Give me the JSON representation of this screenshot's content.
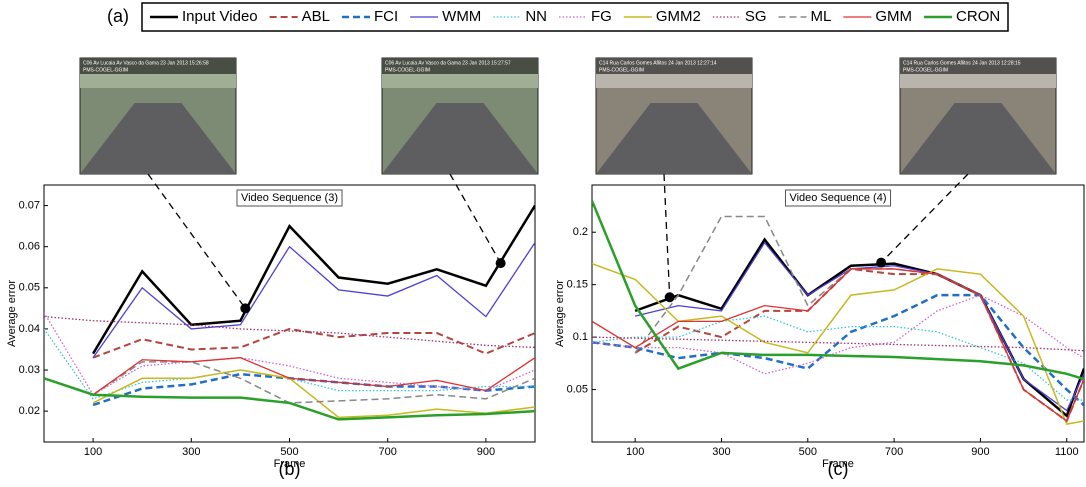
{
  "panel_label": "(a)",
  "chart_data": [
    {
      "type": "line",
      "label": "(b)",
      "annotation": "Video Sequence (3)",
      "xlabel": "Frame",
      "ylabel": "Average error",
      "x": [
        0,
        100,
        200,
        300,
        400,
        500,
        600,
        700,
        800,
        900,
        1000
      ],
      "xlim": [
        0,
        1000
      ],
      "xticks": [
        100,
        300,
        500,
        700,
        900
      ],
      "ylim": [
        0.0125,
        0.075
      ],
      "yticks": [
        0.02,
        0.03,
        0.04,
        0.05,
        0.06,
        0.07
      ],
      "series": [
        {
          "name": "Input Video",
          "color": "#000000",
          "style": "solid",
          "width": 2.5,
          "values": [
            null,
            0.034,
            0.054,
            0.041,
            0.042,
            0.065,
            0.0525,
            0.051,
            0.0545,
            0.0505,
            0.07
          ]
        },
        {
          "name": "ABL",
          "color": "#b5443f",
          "style": "dashed",
          "width": 2,
          "values": [
            null,
            0.033,
            0.0375,
            0.035,
            0.0355,
            0.04,
            0.038,
            0.039,
            0.039,
            0.034,
            0.039
          ]
        },
        {
          "name": "FCI",
          "color": "#1f6fc6",
          "style": "dashed",
          "width": 2.5,
          "values": [
            null,
            0.0215,
            0.0255,
            0.0265,
            0.029,
            0.028,
            0.027,
            0.026,
            0.026,
            0.025,
            0.026
          ]
        },
        {
          "name": "WMM",
          "color": "#4b3fd8",
          "style": "solid",
          "width": 1.3,
          "values": [
            null,
            0.033,
            0.05,
            0.04,
            0.041,
            0.06,
            0.0495,
            0.048,
            0.053,
            0.043,
            0.061
          ]
        },
        {
          "name": "NN",
          "color": "#33c8d0",
          "style": "dotted",
          "width": 1.3,
          "values": [
            0.04,
            0.023,
            0.027,
            0.028,
            0.03,
            0.028,
            0.025,
            0.025,
            0.025,
            0.026,
            0.026
          ]
        },
        {
          "name": "FG",
          "color": "#d45fd4",
          "style": "dotted",
          "width": 1.3,
          "values": [
            0.044,
            0.024,
            0.031,
            0.032,
            0.033,
            0.031,
            0.028,
            0.027,
            0.026,
            0.025,
            0.03
          ]
        },
        {
          "name": "GMM2",
          "color": "#c8b820",
          "style": "solid",
          "width": 1.5,
          "values": [
            null,
            0.022,
            0.028,
            0.028,
            0.03,
            0.028,
            0.0185,
            0.019,
            0.0205,
            0.0195,
            0.021
          ]
        },
        {
          "name": "SG",
          "color": "#a0306a",
          "style": "dotted",
          "width": 1.3,
          "values": [
            0.043,
            0.042,
            0.0415,
            0.041,
            0.04,
            0.0395,
            0.039,
            0.038,
            0.037,
            0.036,
            0.0355
          ]
        },
        {
          "name": "ML",
          "color": "#888888",
          "style": "dashed",
          "width": 1.5,
          "values": [
            null,
            0.024,
            0.032,
            0.032,
            0.028,
            0.022,
            0.0225,
            0.023,
            0.024,
            0.023,
            0.028
          ]
        },
        {
          "name": "GMM",
          "color": "#e03030",
          "style": "solid",
          "width": 1.3,
          "values": [
            null,
            0.024,
            0.0325,
            0.032,
            0.033,
            0.028,
            0.027,
            0.026,
            0.0275,
            0.025,
            0.033
          ]
        },
        {
          "name": "CRON",
          "color": "#2aa02a",
          "style": "solid",
          "width": 2.5,
          "values": [
            0.028,
            0.024,
            0.0235,
            0.0233,
            0.0233,
            0.022,
            0.018,
            0.0185,
            0.019,
            0.0193,
            0.02
          ]
        }
      ],
      "markers": [
        {
          "x": 410,
          "y": 0.045
        },
        {
          "x": 930,
          "y": 0.056
        }
      ],
      "thumbnails": [
        {
          "caption": "C06 Av Lucaia Av Vasco da Gama 23 Jan 2013 15:26:58",
          "source": "PMS-COGEL-GGIM"
        },
        {
          "caption": "C06 Av Lucaia Av Vasco da Gama 23 Jan 2013 15:27:57",
          "source": "PMS-COGEL-GGIM"
        }
      ]
    },
    {
      "type": "line",
      "label": "(c)",
      "annotation": "Video Sequence (4)",
      "xlabel": "Frame",
      "ylabel": "Average error",
      "x": [
        0,
        100,
        200,
        300,
        400,
        500,
        600,
        700,
        800,
        900,
        1000,
        1100,
        1140
      ],
      "xlim": [
        0,
        1140
      ],
      "xticks": [
        100,
        300,
        500,
        700,
        900,
        1100
      ],
      "ylim": [
        0,
        0.245
      ],
      "yticks": [
        0.05,
        0.1,
        0.15,
        0.2
      ],
      "series": [
        {
          "values": [
            null,
            0.125,
            0.14,
            0.127,
            0.193,
            0.14,
            0.168,
            0.17,
            0.16,
            0.14,
            0.06,
            0.025,
            0.07
          ]
        },
        {
          "values": [
            null,
            0.085,
            0.11,
            0.1,
            0.125,
            0.125,
            0.165,
            0.16,
            0.16,
            0.14,
            0.05,
            0.02,
            0.06
          ]
        },
        {
          "values": [
            0.095,
            0.09,
            0.08,
            0.085,
            0.08,
            0.07,
            0.105,
            0.12,
            0.14,
            0.14,
            0.09,
            0.05,
            0.035
          ]
        },
        {
          "values": [
            null,
            0.12,
            0.13,
            0.125,
            0.19,
            0.14,
            0.165,
            0.168,
            0.16,
            0.14,
            0.06,
            0.03,
            0.065
          ]
        },
        {
          "values": [
            0.095,
            0.1,
            0.1,
            0.115,
            0.12,
            0.105,
            0.11,
            0.11,
            0.105,
            0.09,
            0.075,
            0.04,
            0.04
          ]
        },
        {
          "values": [
            0.095,
            0.09,
            0.09,
            0.085,
            0.065,
            0.075,
            0.09,
            0.095,
            0.125,
            0.14,
            0.12,
            0.09,
            0.08
          ]
        },
        {
          "values": [
            0.17,
            0.155,
            0.115,
            0.12,
            0.095,
            0.085,
            0.14,
            0.145,
            0.165,
            0.16,
            0.12,
            0.017,
            0.02
          ]
        },
        {
          "values": [
            0.1,
            0.099,
            0.098,
            0.097,
            0.096,
            0.095,
            0.094,
            0.093,
            0.092,
            0.091,
            0.09,
            0.088,
            0.087
          ]
        },
        {
          "values": [
            null,
            0.085,
            0.14,
            0.215,
            0.215,
            0.13,
            0.165,
            0.165,
            0.16,
            0.14,
            0.05,
            0.02,
            0.06
          ]
        },
        {
          "values": [
            0.115,
            0.09,
            0.115,
            0.115,
            0.13,
            0.125,
            0.165,
            0.165,
            0.16,
            0.14,
            0.05,
            0.02,
            0.06
          ]
        },
        {
          "values": [
            0.23,
            0.13,
            0.07,
            0.085,
            0.083,
            0.083,
            0.082,
            0.081,
            0.079,
            0.077,
            0.073,
            0.065,
            0.06
          ]
        }
      ],
      "markers": [
        {
          "x": 180,
          "y": 0.138
        },
        {
          "x": 670,
          "y": 0.171
        }
      ],
      "thumbnails": [
        {
          "caption": "C14 Rua Carlos Gomes Aflitos 24 Jan 2013 12:27:14",
          "source": "PMS-COGEL-GGIM"
        },
        {
          "caption": "C14 Rua Carlos Gomes Aflitos 24 Jan 2013 12:28:15",
          "source": "PMS-COGEL-GGIM"
        }
      ]
    }
  ]
}
